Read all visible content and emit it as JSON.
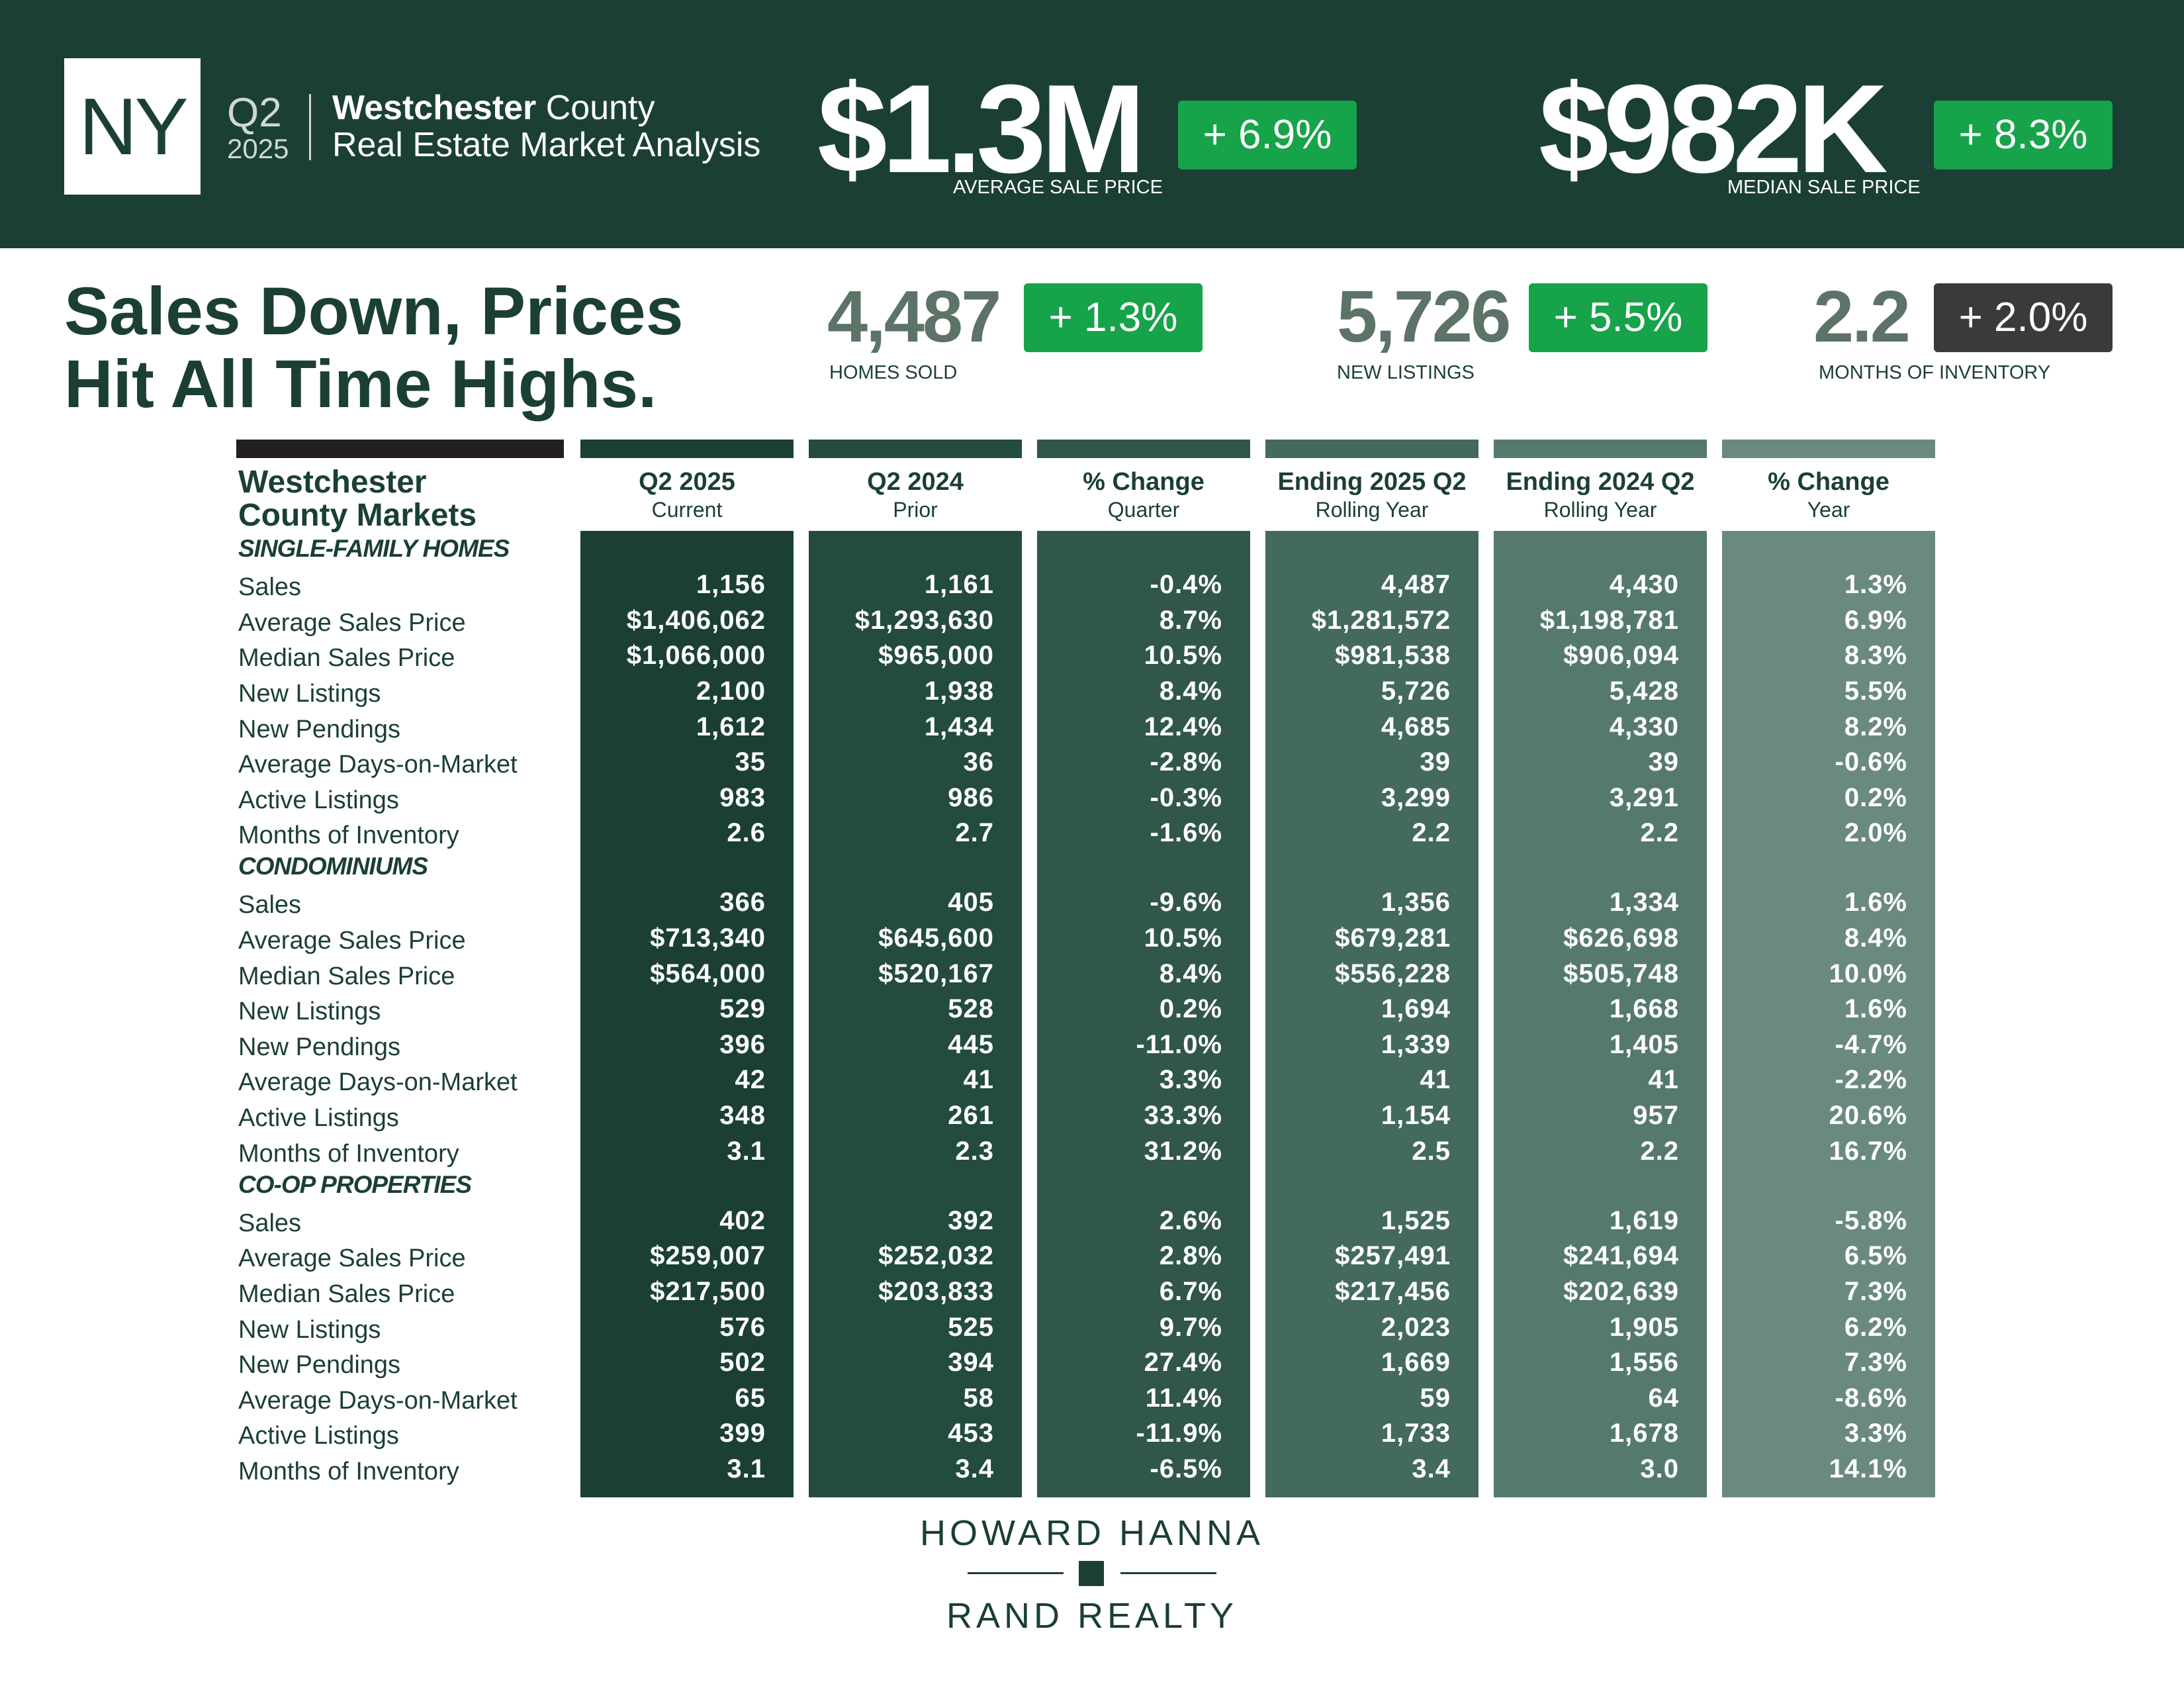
{
  "header": {
    "state": "NY",
    "quarter": "Q2",
    "year": "2025",
    "county_bold": "Westchester",
    "county_word": " County",
    "subtitle": "Real Estate Market Analysis",
    "avg_sale": {
      "value": "$1.3M",
      "change": "+ 6.9%",
      "caption": "AVERAGE SALE PRICE"
    },
    "median_sale": {
      "value": "$982K",
      "change": "+ 8.3%",
      "caption": "MEDIAN SALE PRICE"
    }
  },
  "headline": {
    "line1": "Sales Down, Prices",
    "line2": "Hit All Time Highs."
  },
  "stats": [
    {
      "value": "4,487",
      "change": "+ 1.3%",
      "caption": "HOMES SOLD",
      "badge": "green"
    },
    {
      "value": "5,726",
      "change": "+ 5.5%",
      "caption": "NEW LISTINGS",
      "badge": "green"
    },
    {
      "value": "2.2",
      "change": "+ 2.0%",
      "caption": "MONTHS OF INVENTORY",
      "badge": "dark"
    }
  ],
  "table": {
    "title_line1": "Westchester",
    "title_line2": "County Markets",
    "columns": [
      {
        "h1": "Q2 2025",
        "h2": "Current",
        "color": "#1b3f35"
      },
      {
        "h1": "Q2 2024",
        "h2": "Prior",
        "color": "#234b3f"
      },
      {
        "h1": "% Change",
        "h2": "Quarter",
        "color": "#31564a"
      },
      {
        "h1": "Ending 2025 Q2",
        "h2": "Rolling Year",
        "color": "#436a5d"
      },
      {
        "h1": "Ending 2024 Q2",
        "h2": "Rolling Year",
        "color": "#557a6c"
      },
      {
        "h1": "% Change",
        "h2": "Year",
        "color": "#6b8a7e"
      }
    ],
    "sections": [
      {
        "name": "SINGLE-FAMILY HOMES",
        "rows": [
          {
            "label": "Sales",
            "values": [
              "1,156",
              "1,161",
              "-0.4%",
              "4,487",
              "4,430",
              "1.3%"
            ]
          },
          {
            "label": "Average Sales Price",
            "values": [
              "$1,406,062",
              "$1,293,630",
              "8.7%",
              "$1,281,572",
              "$1,198,781",
              "6.9%"
            ]
          },
          {
            "label": "Median Sales Price",
            "values": [
              "$1,066,000",
              "$965,000",
              "10.5%",
              "$981,538",
              "$906,094",
              "8.3%"
            ]
          },
          {
            "label": "New Listings",
            "values": [
              "2,100",
              "1,938",
              "8.4%",
              "5,726",
              "5,428",
              "5.5%"
            ]
          },
          {
            "label": "New Pendings",
            "values": [
              "1,612",
              "1,434",
              "12.4%",
              "4,685",
              "4,330",
              "8.2%"
            ]
          },
          {
            "label": "Average Days-on-Market",
            "values": [
              "35",
              "36",
              "-2.8%",
              "39",
              "39",
              "-0.6%"
            ]
          },
          {
            "label": "Active Listings",
            "values": [
              "983",
              "986",
              "-0.3%",
              "3,299",
              "3,291",
              "0.2%"
            ]
          },
          {
            "label": "Months of Inventory",
            "values": [
              "2.6",
              "2.7",
              "-1.6%",
              "2.2",
              "2.2",
              "2.0%"
            ]
          }
        ]
      },
      {
        "name": "CONDOMINIUMS",
        "rows": [
          {
            "label": "Sales",
            "values": [
              "366",
              "405",
              "-9.6%",
              "1,356",
              "1,334",
              "1.6%"
            ]
          },
          {
            "label": "Average Sales Price",
            "values": [
              "$713,340",
              "$645,600",
              "10.5%",
              "$679,281",
              "$626,698",
              "8.4%"
            ]
          },
          {
            "label": "Median Sales Price",
            "values": [
              "$564,000",
              "$520,167",
              "8.4%",
              "$556,228",
              "$505,748",
              "10.0%"
            ]
          },
          {
            "label": "New Listings",
            "values": [
              "529",
              "528",
              "0.2%",
              "1,694",
              "1,668",
              "1.6%"
            ]
          },
          {
            "label": "New Pendings",
            "values": [
              "396",
              "445",
              "-11.0%",
              "1,339",
              "1,405",
              "-4.7%"
            ]
          },
          {
            "label": "Average Days-on-Market",
            "values": [
              "42",
              "41",
              "3.3%",
              "41",
              "41",
              "-2.2%"
            ]
          },
          {
            "label": "Active Listings",
            "values": [
              "348",
              "261",
              "33.3%",
              "1,154",
              "957",
              "20.6%"
            ]
          },
          {
            "label": "Months of Inventory",
            "values": [
              "3.1",
              "2.3",
              "31.2%",
              "2.5",
              "2.2",
              "16.7%"
            ]
          }
        ]
      },
      {
        "name": "CO-OP PROPERTIES",
        "rows": [
          {
            "label": "Sales",
            "values": [
              "402",
              "392",
              "2.6%",
              "1,525",
              "1,619",
              "-5.8%"
            ]
          },
          {
            "label": "Average Sales Price",
            "values": [
              "$259,007",
              "$252,032",
              "2.8%",
              "$257,491",
              "$241,694",
              "6.5%"
            ]
          },
          {
            "label": "Median Sales Price",
            "values": [
              "$217,500",
              "$203,833",
              "6.7%",
              "$217,456",
              "$202,639",
              "7.3%"
            ]
          },
          {
            "label": "New Listings",
            "values": [
              "576",
              "525",
              "9.7%",
              "2,023",
              "1,905",
              "6.2%"
            ]
          },
          {
            "label": "New Pendings",
            "values": [
              "502",
              "394",
              "27.4%",
              "1,669",
              "1,556",
              "7.3%"
            ]
          },
          {
            "label": "Average Days-on-Market",
            "values": [
              "65",
              "58",
              "11.4%",
              "59",
              "64",
              "-8.6%"
            ]
          },
          {
            "label": "Active Listings",
            "values": [
              "399",
              "453",
              "-11.9%",
              "1,733",
              "1,678",
              "3.3%"
            ]
          },
          {
            "label": "Months of Inventory",
            "values": [
              "3.1",
              "3.4",
              "-6.5%",
              "3.4",
              "3.0",
              "14.1%"
            ]
          }
        ]
      }
    ]
  },
  "footer": {
    "brand_line1": "HOWARD HANNA",
    "brand_line2": "RAND REALTY"
  }
}
